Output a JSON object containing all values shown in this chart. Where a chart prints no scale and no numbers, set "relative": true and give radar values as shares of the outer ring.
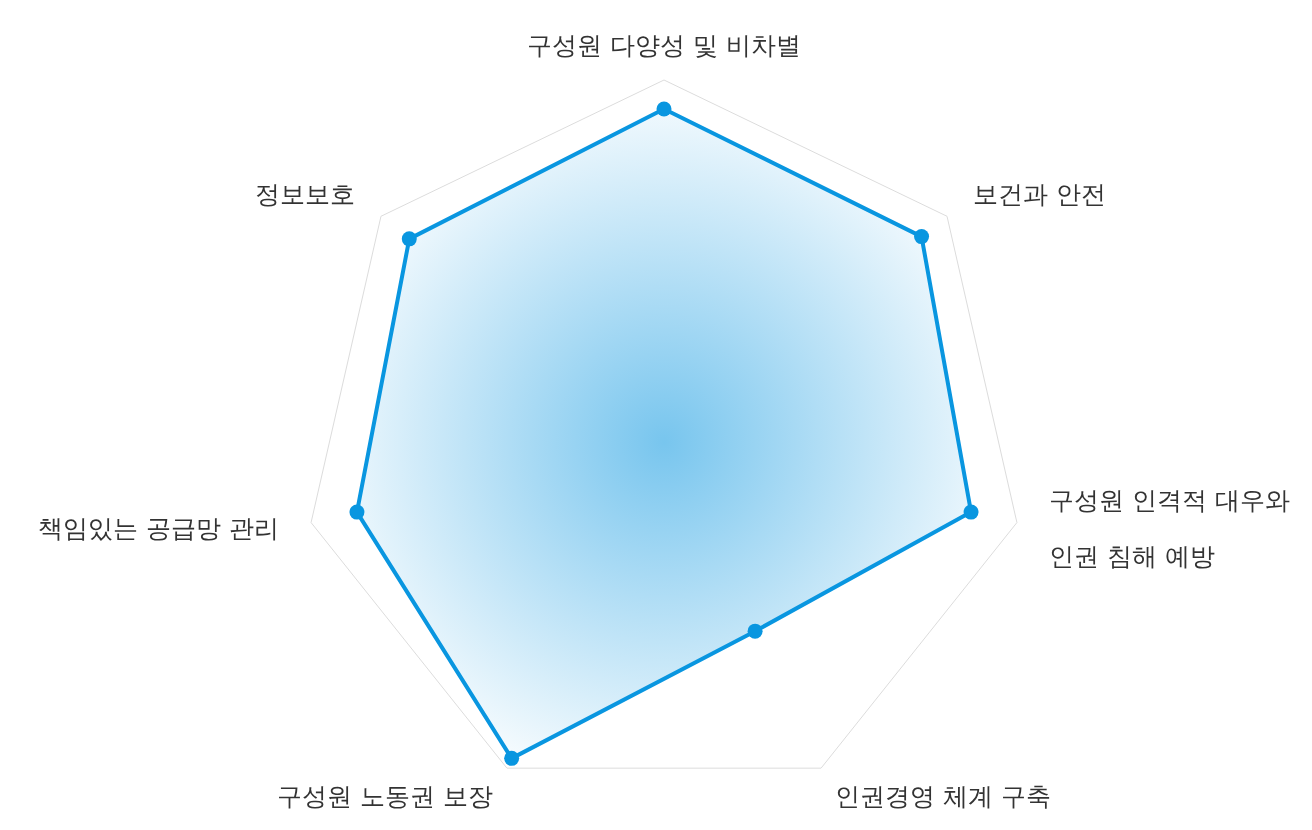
{
  "chart_data": {
    "type": "radar",
    "relative": true,
    "marker": "circle",
    "categories": [
      "구성원 다양성 및 비차별",
      "보건과 안전",
      "구성원 인격적 대우와 인권 침해 예방",
      "인권경영 체계 구축",
      "구성원 노동권 보장",
      "책임있는 공급망 관리",
      "정보보호"
    ],
    "series": [
      {
        "color": "#0996e0",
        "values": [
          0.92,
          0.91,
          0.87,
          0.58,
          0.97,
          0.87,
          0.9
        ]
      }
    ]
  }
}
